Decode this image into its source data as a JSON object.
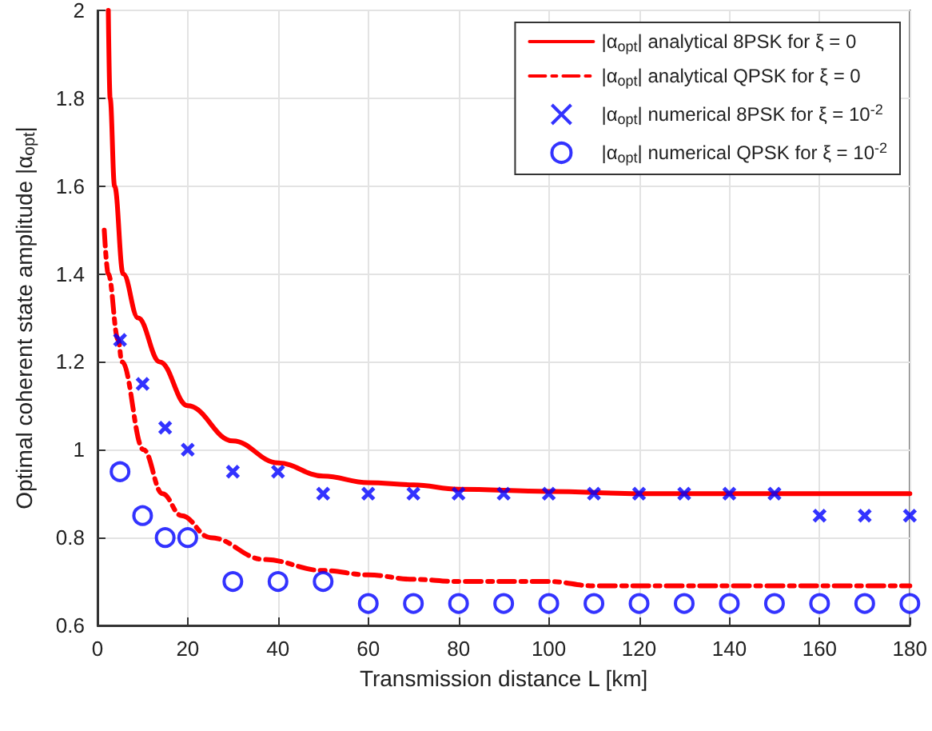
{
  "chart_data": {
    "type": "line",
    "xlabel": "Transmission distance L [km]",
    "ylabel": "Optimal coherent state amplitude |α$_{opt}$|",
    "xlim": [
      0,
      180
    ],
    "xticks": [
      0,
      20,
      40,
      60,
      80,
      100,
      120,
      140,
      160,
      180
    ],
    "ylim": [
      0.6,
      2
    ],
    "yticks": [
      0.6,
      0.8,
      1,
      1.2,
      1.4,
      1.6,
      1.8,
      2
    ],
    "grid": true,
    "legend": "top right",
    "series": [
      {
        "name": "|α$_{opt}$| analytical 8PSK for ξ = 0",
        "color": "#ff0000",
        "line_style": "solid",
        "marker": "none",
        "x": [
          2.4,
          2.8,
          3.8,
          5.7,
          9,
          13.8,
          20,
          30,
          40,
          50,
          60,
          70,
          80,
          100,
          120,
          150,
          180
        ],
        "values": [
          2,
          1.8,
          1.6,
          1.4,
          1.3,
          1.2,
          1.1,
          1.02,
          0.97,
          0.94,
          0.925,
          0.92,
          0.91,
          0.905,
          0.9,
          0.9,
          0.9
        ]
      },
      {
        "name": "|α$_{opt}$| analytical QPSK for ξ = 0",
        "color": "#ff0000",
        "line_style": "dashed",
        "marker": "none",
        "x": [
          1.5,
          2.4,
          4.6,
          5.4,
          10.2,
          14.4,
          18.6,
          25,
          37,
          50,
          60,
          70,
          80,
          100,
          110,
          140,
          180
        ],
        "values": [
          1.5,
          1.4,
          1.25,
          1.2,
          1,
          0.9,
          0.85,
          0.8,
          0.75,
          0.725,
          0.715,
          0.705,
          0.7,
          0.7,
          0.69,
          0.69,
          0.69
        ]
      },
      {
        "name": "|α$_{opt}$| numerical 8PSK for ξ = 10$^{-2}$",
        "type": "scatter",
        "color": "#0000ff",
        "marker": "cross",
        "x": [
          5,
          10,
          15,
          20,
          30,
          40,
          50,
          60,
          70,
          80,
          90,
          100,
          110,
          120,
          130,
          140,
          150,
          160,
          170,
          180
        ],
        "values": [
          1.25,
          1.15,
          1.05,
          1,
          0.95,
          0.95,
          0.9,
          0.9,
          0.9,
          0.9,
          0.9,
          0.9,
          0.9,
          0.9,
          0.9,
          0.9,
          0.9,
          0.85,
          0.85,
          0.85
        ]
      },
      {
        "name": "|α$_{opt}$| numerical QPSK for ξ = 10$^{-2}$",
        "type": "scatter",
        "color": "#0000ff",
        "marker": "circle",
        "x": [
          5,
          10,
          15,
          20,
          30,
          40,
          50,
          60,
          70,
          80,
          90,
          100,
          110,
          120,
          130,
          140,
          150,
          160,
          170,
          180
        ],
        "values": [
          0.95,
          0.85,
          0.8,
          0.8,
          0.7,
          0.7,
          0.7,
          0.65,
          0.65,
          0.65,
          0.65,
          0.65,
          0.65,
          0.65,
          0.65,
          0.65,
          0.65,
          0.65,
          0.65,
          0.65
        ]
      }
    ]
  }
}
